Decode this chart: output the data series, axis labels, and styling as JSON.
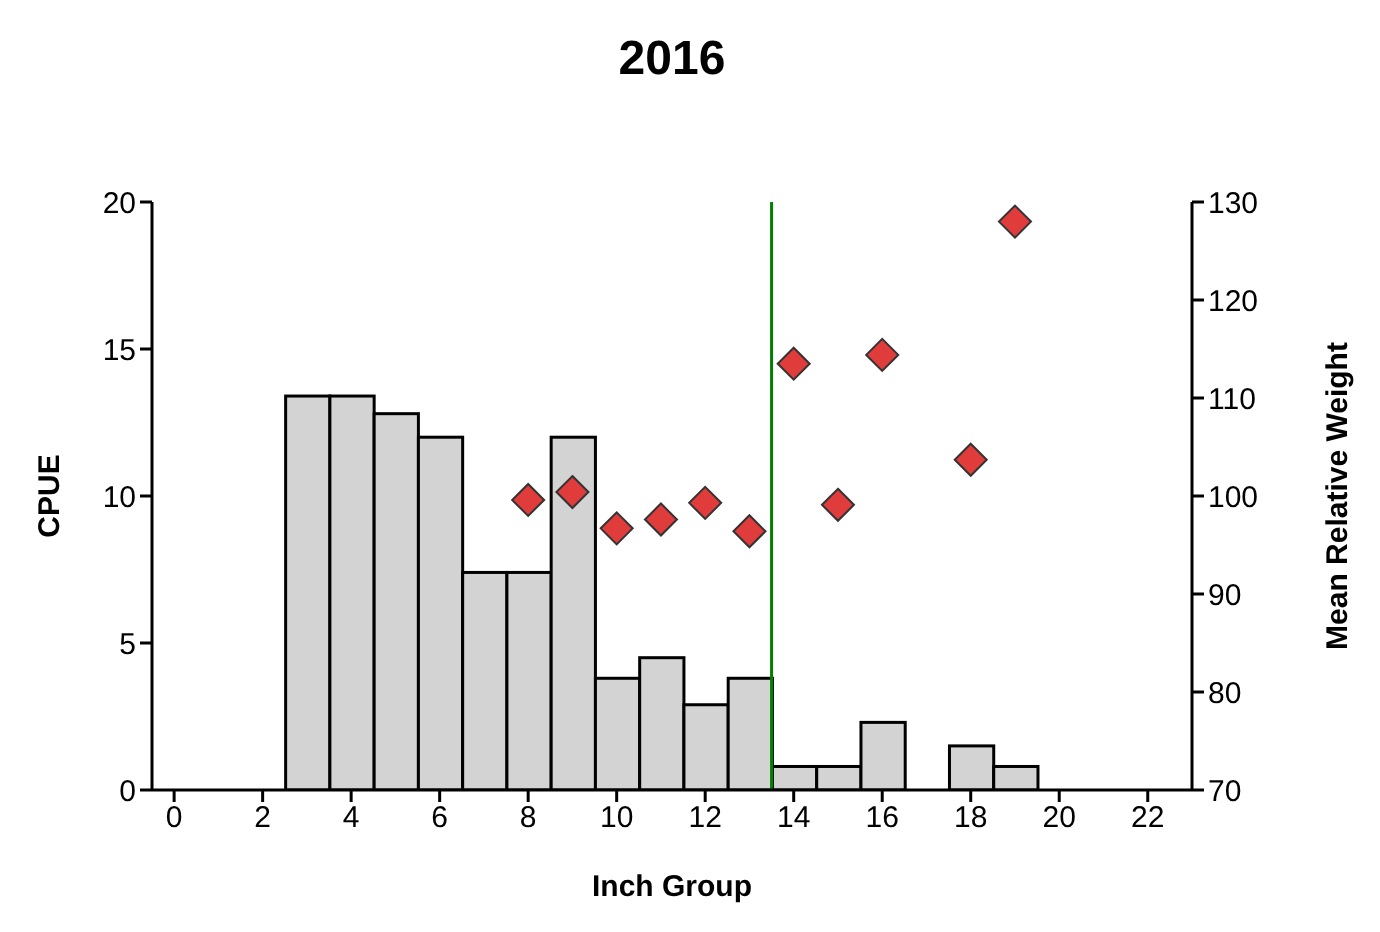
{
  "chart_data": {
    "type": "histogram",
    "title": "2016",
    "xlabel": "Inch Group",
    "ylabel": "CPUE",
    "y2label": "Mean Relative Weight",
    "xlim": [
      -0.5,
      23
    ],
    "xticks": [
      0,
      2,
      4,
      6,
      8,
      10,
      12,
      14,
      16,
      18,
      20,
      22
    ],
    "ylim": [
      0,
      20
    ],
    "yticks": [
      0,
      5,
      10,
      15,
      20
    ],
    "y2lim": [
      70,
      130
    ],
    "y2ticks": [
      70,
      80,
      90,
      100,
      110,
      120,
      130
    ],
    "grid": false,
    "legend": false,
    "ref_lines": [
      {
        "axis": "x",
        "value": 13.5,
        "color": "#008000"
      }
    ],
    "series": [
      {
        "color": "#d3d3d3",
        "bins": [
          2.5,
          3.5,
          4.5,
          5.5,
          6.5,
          7.5,
          8.5,
          9.5,
          10.5,
          11.5,
          12.5,
          13.5,
          14.5,
          15.5,
          16.5,
          17.5,
          18.5,
          19.5
        ],
        "values": [
          13.4,
          13.4,
          12.8,
          12.0,
          7.4,
          7.4,
          12.0,
          3.8,
          4.5,
          2.9,
          3.8,
          0.8,
          0.8,
          2.3,
          0,
          1.5,
          0.8
        ]
      },
      {
        "type": "scatter",
        "axis": "y2",
        "marker": "diamond",
        "color": "#e03c3c",
        "x": [
          8,
          9,
          10,
          11,
          12,
          13,
          14,
          15,
          16,
          18,
          19
        ],
        "values": [
          99.6,
          100.4,
          96.7,
          97.6,
          99.3,
          96.4,
          113.5,
          99.1,
          114.4,
          103.7,
          128.0
        ]
      }
    ]
  }
}
